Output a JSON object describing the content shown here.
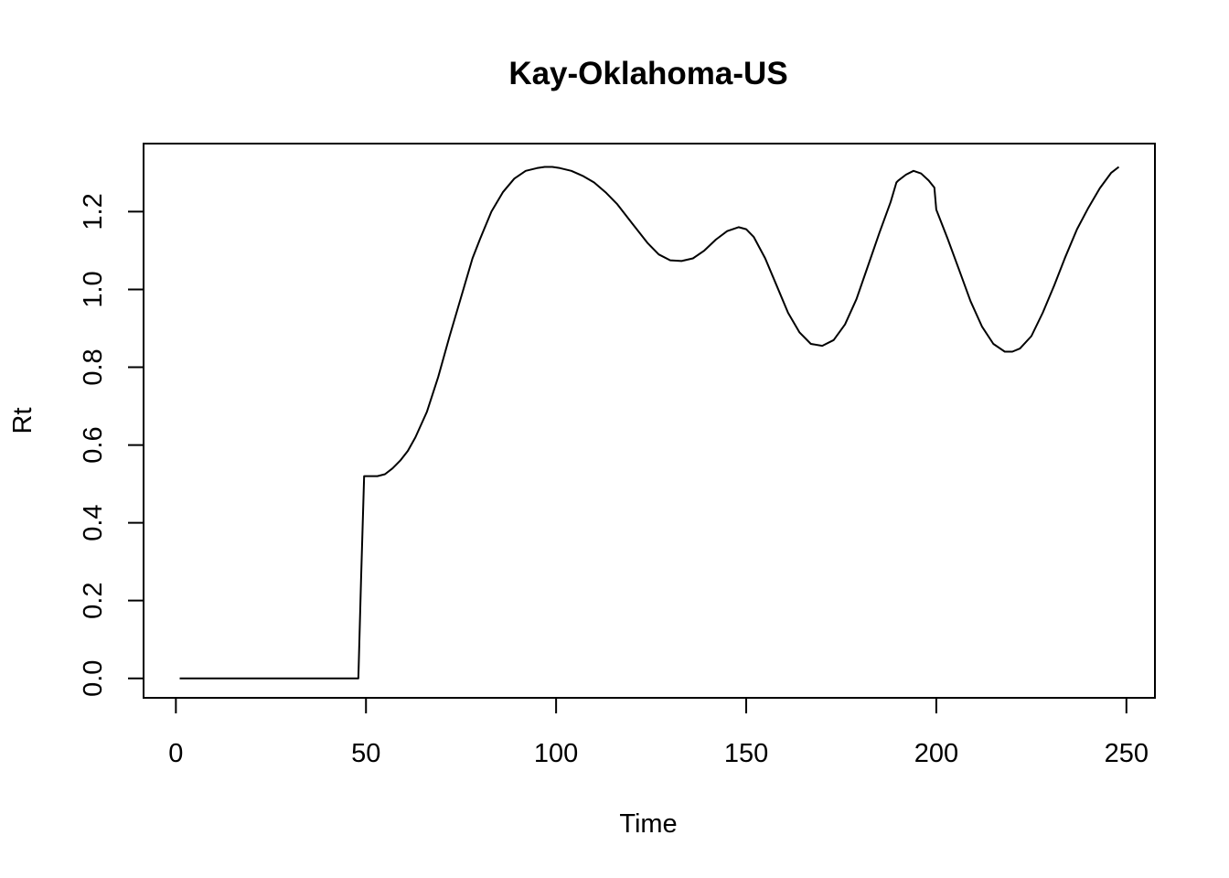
{
  "chart_data": {
    "type": "line",
    "title": "Kay-Oklahoma-US",
    "xlabel": "Time",
    "ylabel": "Rt",
    "xlim": [
      -8.5,
      257.5
    ],
    "ylim": [
      -0.05,
      1.375
    ],
    "xticks": [
      0,
      50,
      100,
      150,
      200,
      250
    ],
    "xtick_labels": [
      "0",
      "50",
      "100",
      "150",
      "200",
      "250"
    ],
    "yticks": [
      0.0,
      0.2,
      0.4,
      0.6,
      0.8,
      1.0,
      1.2
    ],
    "ytick_labels": [
      "0.0",
      "0.2",
      "0.4",
      "0.6",
      "0.8",
      "1.0",
      "1.2"
    ],
    "grid": false,
    "legend": "none",
    "series": [
      {
        "color": "#000000",
        "x": [
          1,
          48,
          48.7,
          49.5,
          50,
          53,
          55,
          57,
          59,
          61,
          63,
          66,
          69,
          72,
          75,
          78,
          80,
          83,
          86,
          89,
          92,
          95,
          97,
          99,
          101,
          104,
          107,
          110,
          113,
          116,
          120,
          124,
          127,
          130,
          133,
          136,
          139,
          142,
          145,
          148,
          150,
          152,
          155,
          158,
          161,
          164,
          167,
          170,
          173,
          176,
          179,
          182,
          185,
          188,
          189.5,
          190,
          192,
          194,
          196,
          198,
          199.5,
          200,
          203,
          206,
          209,
          212,
          215,
          218,
          220,
          222,
          225,
          228,
          231,
          234,
          237,
          240,
          243,
          246,
          248
        ],
        "y": [
          0.0,
          0.0,
          0.25,
          0.52,
          0.52,
          0.52,
          0.525,
          0.54,
          0.56,
          0.585,
          0.62,
          0.685,
          0.775,
          0.88,
          0.98,
          1.08,
          1.13,
          1.2,
          1.25,
          1.285,
          1.305,
          1.312,
          1.315,
          1.315,
          1.312,
          1.305,
          1.292,
          1.275,
          1.25,
          1.22,
          1.17,
          1.12,
          1.09,
          1.075,
          1.073,
          1.08,
          1.1,
          1.128,
          1.15,
          1.16,
          1.155,
          1.135,
          1.08,
          1.01,
          0.94,
          0.89,
          0.86,
          0.855,
          0.87,
          0.91,
          0.975,
          1.06,
          1.145,
          1.225,
          1.275,
          1.28,
          1.295,
          1.305,
          1.298,
          1.28,
          1.262,
          1.205,
          1.13,
          1.05,
          0.97,
          0.905,
          0.86,
          0.84,
          0.84,
          0.848,
          0.88,
          0.94,
          1.01,
          1.085,
          1.155,
          1.21,
          1.26,
          1.3,
          1.315
        ]
      }
    ]
  }
}
